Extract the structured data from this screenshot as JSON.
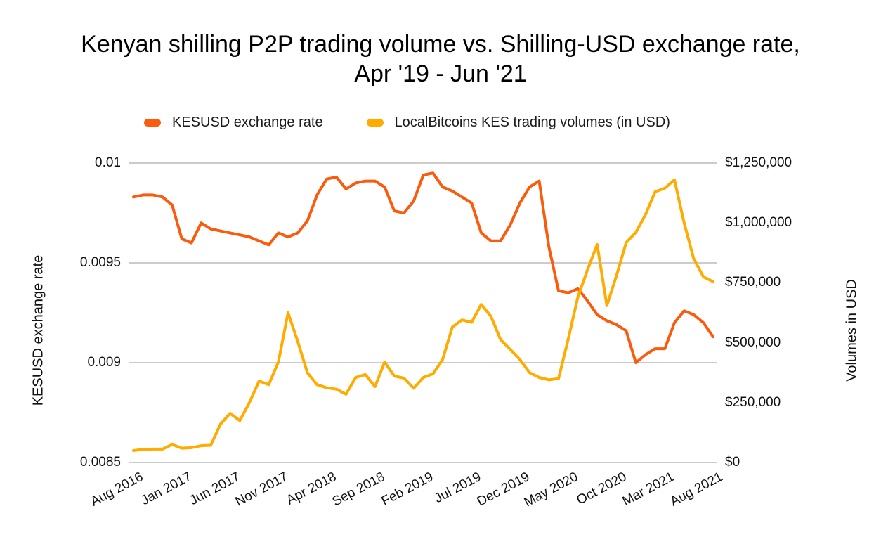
{
  "title": {
    "line1": "Kenyan shilling P2P trading volume vs. Shilling-USD exchange rate,",
    "line2": "Apr '19 - Jun '21"
  },
  "chart_data": {
    "type": "line",
    "title": "Kenyan shilling P2P trading volume vs. Shilling-USD exchange rate, Apr '19 - Jun '21",
    "grid": "horizontal",
    "grid_color": "#cccccc",
    "background_color": "#ffffff",
    "legend_position": "top",
    "x": [
      "Aug 2016",
      "Sep 2016",
      "Oct 2016",
      "Nov 2016",
      "Dec 2016",
      "Jan 2017",
      "Feb 2017",
      "Mar 2017",
      "Apr 2017",
      "May 2017",
      "Jun 2017",
      "Jul 2017",
      "Aug 2017",
      "Sep 2017",
      "Oct 2017",
      "Nov 2017",
      "Dec 2017",
      "Jan 2018",
      "Feb 2018",
      "Mar 2018",
      "Apr 2018",
      "May 2018",
      "Jun 2018",
      "Jul 2018",
      "Aug 2018",
      "Sep 2018",
      "Oct 2018",
      "Nov 2018",
      "Dec 2018",
      "Jan 2019",
      "Feb 2019",
      "Mar 2019",
      "Apr 2019",
      "May 2019",
      "Jun 2019",
      "Jul 2019",
      "Aug 2019",
      "Sep 2019",
      "Oct 2019",
      "Nov 2019",
      "Dec 2019",
      "Jan 2020",
      "Feb 2020",
      "Mar 2020",
      "Apr 2020",
      "May 2020",
      "Jun 2020",
      "Jul 2020",
      "Aug 2020",
      "Sep 2020",
      "Oct 2020",
      "Nov 2020",
      "Dec 2020",
      "Jan 2021",
      "Feb 2021",
      "Mar 2021",
      "Apr 2021",
      "May 2021",
      "Jun 2021",
      "Jul 2021",
      "Aug 2021"
    ],
    "x_tick_labels": [
      "Aug 2016",
      "Jan 2017",
      "Jun 2017",
      "Nov 2017",
      "Apr 2018",
      "Sep 2018",
      "Feb 2019",
      "Jul 2019",
      "Dec 2019",
      "May 2020",
      "Oct 2020",
      "Mar 2021",
      "Aug 2021"
    ],
    "series": [
      {
        "name": "KESUSD exchange rate",
        "color": "#fa5b0d",
        "axis": "left",
        "values": [
          0.00983,
          0.00984,
          0.00984,
          0.00983,
          0.00979,
          0.00962,
          0.0096,
          0.0097,
          0.00967,
          0.00966,
          0.00965,
          0.00964,
          0.00963,
          0.00961,
          0.00959,
          0.00965,
          0.00963,
          0.00965,
          0.00971,
          0.00984,
          0.00992,
          0.00993,
          0.00987,
          0.0099,
          0.00991,
          0.00991,
          0.00988,
          0.00976,
          0.00975,
          0.00981,
          0.00994,
          0.00995,
          0.00988,
          0.00986,
          0.00983,
          0.0098,
          0.00965,
          0.00961,
          0.00961,
          0.00969,
          0.0098,
          0.00988,
          0.00991,
          0.00958,
          0.00936,
          0.00935,
          0.00937,
          0.00931,
          0.00924,
          0.00921,
          0.00919,
          0.00916,
          0.009,
          0.00904,
          0.00907,
          0.00907,
          0.0092,
          0.00926,
          0.00924,
          0.0092,
          0.00913
        ]
      },
      {
        "name": "LocalBitcoins KES trading volumes (in USD)",
        "color": "#ffab00",
        "axis": "right",
        "values": [
          50000,
          55000,
          56000,
          56000,
          75000,
          60000,
          62000,
          70000,
          72000,
          160000,
          205000,
          175000,
          250000,
          340000,
          325000,
          420000,
          625000,
          505000,
          375000,
          325000,
          312000,
          306000,
          285000,
          355000,
          367000,
          317000,
          419000,
          361000,
          352000,
          310000,
          355000,
          370000,
          430000,
          565000,
          595000,
          585000,
          660000,
          610000,
          513000,
          472000,
          430000,
          375000,
          355000,
          345000,
          350000,
          515000,
          690000,
          805000,
          910000,
          655000,
          780000,
          918000,
          960000,
          1035000,
          1130000,
          1145000,
          1180000,
          1000000,
          850000,
          775000,
          755000
        ]
      }
    ],
    "left_axis": {
      "label": "KESUSD exchange rate",
      "min": 0.0085,
      "max": 0.01,
      "ticks": [
        0.01,
        0.0095,
        0.009,
        0.0085
      ],
      "tick_labels": [
        "0.01",
        "0.0095",
        "0.009",
        "0.0085"
      ]
    },
    "right_axis": {
      "label": "Volumes in USD",
      "min": 0,
      "max": 1250000,
      "ticks": [
        1250000,
        1000000,
        750000,
        500000,
        250000,
        0
      ],
      "tick_labels": [
        "$1,250,000",
        "$1,000,000",
        "$750,000",
        "$500,000",
        "$250,000",
        "$0"
      ]
    }
  }
}
